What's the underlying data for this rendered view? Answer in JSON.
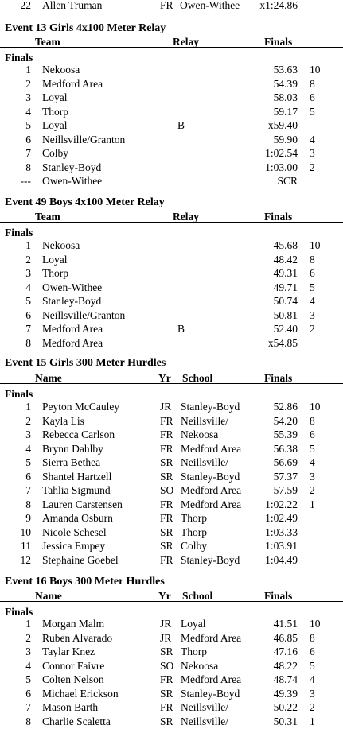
{
  "top_row": {
    "place": "22",
    "name": "Allen Truman",
    "yr": "FR",
    "school": "Owen-Withee",
    "time": "x1:24.86"
  },
  "events": [
    {
      "title": "Event 13  Girls 4x100 Meter Relay",
      "type": "relay",
      "headers": {
        "col1": "Team",
        "col2": "Relay",
        "col3": "Finals"
      },
      "finals_label": "Finals",
      "rows": [
        {
          "place": "1",
          "name": "Nekoosa",
          "relay": "",
          "time": "53.63",
          "pts": "10"
        },
        {
          "place": "2",
          "name": "Medford Area",
          "relay": "",
          "time": "54.39",
          "pts": "8"
        },
        {
          "place": "3",
          "name": "Loyal",
          "relay": "",
          "time": "58.03",
          "pts": "6"
        },
        {
          "place": "4",
          "name": "Thorp",
          "relay": "",
          "time": "59.17",
          "pts": "5"
        },
        {
          "place": "5",
          "name": "Loyal",
          "relay": "B",
          "time": "x59.40",
          "pts": ""
        },
        {
          "place": "6",
          "name": "Neillsville/Granton",
          "relay": "",
          "time": "59.90",
          "pts": "4"
        },
        {
          "place": "7",
          "name": "Colby",
          "relay": "",
          "time": "1:02.54",
          "pts": "3"
        },
        {
          "place": "8",
          "name": "Stanley-Boyd",
          "relay": "",
          "time": "1:03.00",
          "pts": "2"
        },
        {
          "place": "---",
          "name": "Owen-Withee",
          "relay": "",
          "time": "SCR",
          "pts": ""
        }
      ]
    },
    {
      "title": "Event 49  Boys 4x100 Meter Relay",
      "type": "relay",
      "headers": {
        "col1": "Team",
        "col2": "Relay",
        "col3": "Finals"
      },
      "finals_label": "Finals",
      "rows": [
        {
          "place": "1",
          "name": "Nekoosa",
          "relay": "",
          "time": "45.68",
          "pts": "10"
        },
        {
          "place": "2",
          "name": "Loyal",
          "relay": "",
          "time": "48.42",
          "pts": "8"
        },
        {
          "place": "3",
          "name": "Thorp",
          "relay": "",
          "time": "49.31",
          "pts": "6"
        },
        {
          "place": "4",
          "name": "Owen-Withee",
          "relay": "",
          "time": "49.71",
          "pts": "5"
        },
        {
          "place": "5",
          "name": "Stanley-Boyd",
          "relay": "",
          "time": "50.74",
          "pts": "4"
        },
        {
          "place": "6",
          "name": "Neillsville/Granton",
          "relay": "",
          "time": "50.81",
          "pts": "3"
        },
        {
          "place": "7",
          "name": "Medford Area",
          "relay": "B",
          "time": "52.40",
          "pts": "2"
        },
        {
          "place": "8",
          "name": "Medford Area",
          "relay": "",
          "time": "x54.85",
          "pts": ""
        }
      ]
    },
    {
      "title": "Event 15  Girls 300 Meter Hurdles",
      "type": "individual",
      "headers": {
        "col1": "Name",
        "col2": "Yr",
        "col2b": "School",
        "col3": "Finals"
      },
      "finals_label": "Finals",
      "rows": [
        {
          "place": "1",
          "name": "Peyton McCauley",
          "yr": "JR",
          "school": "Stanley-Boyd",
          "time": "52.86",
          "pts": "10"
        },
        {
          "place": "2",
          "name": "Kayla Lis",
          "yr": "FR",
          "school": "Neillsville/",
          "time": "54.20",
          "pts": "8"
        },
        {
          "place": "3",
          "name": "Rebecca Carlson",
          "yr": "FR",
          "school": "Nekoosa",
          "time": "55.39",
          "pts": "6"
        },
        {
          "place": "4",
          "name": "Brynn Dahlby",
          "yr": "FR",
          "school": "Medford Area",
          "time": "56.38",
          "pts": "5"
        },
        {
          "place": "5",
          "name": "Sierra Bethea",
          "yr": "SR",
          "school": "Neillsville/",
          "time": "56.69",
          "pts": "4"
        },
        {
          "place": "6",
          "name": "Shantel Hartzell",
          "yr": "SR",
          "school": "Stanley-Boyd",
          "time": "57.37",
          "pts": "3"
        },
        {
          "place": "7",
          "name": "Tahlia Sigmund",
          "yr": "SO",
          "school": "Medford Area",
          "time": "57.59",
          "pts": "2"
        },
        {
          "place": "8",
          "name": "Lauren Carstensen",
          "yr": "FR",
          "school": "Medford Area",
          "time": "1:02.22",
          "pts": "1"
        },
        {
          "place": "9",
          "name": "Amanda Osburn",
          "yr": "FR",
          "school": "Thorp",
          "time": "1:02.49",
          "pts": ""
        },
        {
          "place": "10",
          "name": "Nicole Schesel",
          "yr": "SR",
          "school": "Thorp",
          "time": "1:03.33",
          "pts": ""
        },
        {
          "place": "11",
          "name": "Jessica Empey",
          "yr": "SR",
          "school": "Colby",
          "time": "1:03.91",
          "pts": ""
        },
        {
          "place": "12",
          "name": "Stephaine Goebel",
          "yr": "FR",
          "school": "Stanley-Boyd",
          "time": "1:04.49",
          "pts": ""
        }
      ]
    },
    {
      "title": "Event 16  Boys 300 Meter Hurdles",
      "type": "individual",
      "headers": {
        "col1": "Name",
        "col2": "Yr",
        "col2b": "School",
        "col3": "Finals"
      },
      "finals_label": "Finals",
      "rows": [
        {
          "place": "1",
          "name": "Morgan Malm",
          "yr": "JR",
          "school": "Loyal",
          "time": "41.51",
          "pts": "10"
        },
        {
          "place": "2",
          "name": "Ruben Alvarado",
          "yr": "JR",
          "school": "Medford Area",
          "time": "46.85",
          "pts": "8"
        },
        {
          "place": "3",
          "name": "Taylar Knez",
          "yr": "SR",
          "school": "Thorp",
          "time": "47.16",
          "pts": "6"
        },
        {
          "place": "4",
          "name": "Connor Faivre",
          "yr": "SO",
          "school": "Nekoosa",
          "time": "48.22",
          "pts": "5"
        },
        {
          "place": "5",
          "name": "Colten Nelson",
          "yr": "FR",
          "school": "Medford Area",
          "time": "48.74",
          "pts": "4"
        },
        {
          "place": "6",
          "name": "Michael Erickson",
          "yr": "SR",
          "school": "Stanley-Boyd",
          "time": "49.39",
          "pts": "3"
        },
        {
          "place": "7",
          "name": "Mason Barth",
          "yr": "FR",
          "school": "Neillsville/",
          "time": "50.22",
          "pts": "2"
        },
        {
          "place": "8",
          "name": "Charlie Scaletta",
          "yr": "SR",
          "school": "Neillsville/",
          "time": "50.31",
          "pts": "1"
        }
      ]
    }
  ]
}
